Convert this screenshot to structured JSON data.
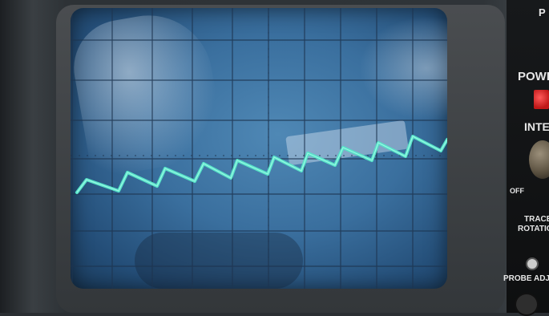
{
  "panel": {
    "top_label": "P",
    "power_label": "POWE",
    "intensity_label": "INTE",
    "off_label": "OFF",
    "trace_rotation_line1": "TRACE",
    "trace_rotation_line2": "ROTATION",
    "probe_adjust_label": "PROBE ADJ"
  },
  "colors": {
    "screen": "#3a6f9e",
    "grid": "#1e3550",
    "trace": "#55e3c8",
    "led": "#e12525"
  },
  "icons": {
    "power_indicator": "red-led-icon",
    "intensity_knob": "knob-icon",
    "trace_rotation_screw": "screw-icon"
  }
}
